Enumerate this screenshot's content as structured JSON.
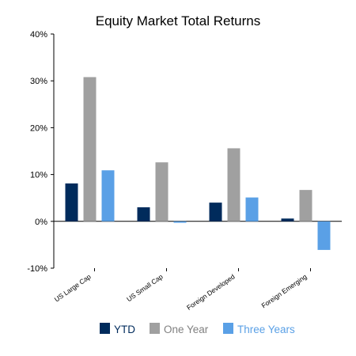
{
  "chart_data": {
    "type": "bar",
    "title": "Equity Market Total Returns",
    "categories": [
      "US Large Cap",
      "US Small Cap",
      "Foreign Developed",
      "Foreign Emerging"
    ],
    "series": [
      {
        "name": "YTD",
        "color": "#002B5C",
        "values": [
          8.1,
          3.0,
          4.0,
          0.6
        ]
      },
      {
        "name": "One Year",
        "color": "#A0A0A0",
        "values": [
          30.8,
          12.6,
          15.6,
          6.7
        ]
      },
      {
        "name": "Three Years",
        "color": "#5AA0E6",
        "values": [
          10.9,
          -0.3,
          5.1,
          -6.1
        ]
      }
    ],
    "yticks": [
      "-10%",
      "0%",
      "10%",
      "20%",
      "30%",
      "40%"
    ],
    "ylim": [
      -10,
      40
    ],
    "grid": false,
    "legend_position": "bottom",
    "legend_text_color": "#808080"
  }
}
